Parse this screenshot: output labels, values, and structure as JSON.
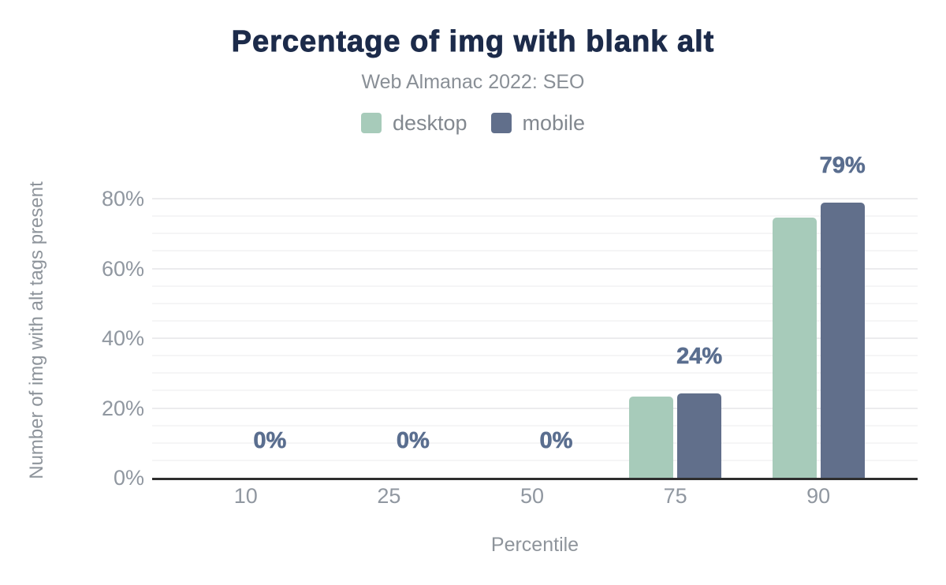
{
  "chart_data": {
    "type": "bar",
    "title": "Percentage of img with blank alt",
    "subtitle": "Web Almanac 2022: SEO",
    "xlabel": "Percentile",
    "ylabel": "Number of img with alt tags present",
    "categories": [
      "10",
      "25",
      "50",
      "75",
      "90"
    ],
    "series": [
      {
        "name": "desktop",
        "color": "#a7cbba",
        "values": [
          0,
          0,
          0,
          23.3,
          74.5
        ]
      },
      {
        "name": "mobile",
        "color": "#616f8b",
        "values": [
          0,
          0,
          0,
          24.2,
          79
        ]
      }
    ],
    "bar_labels": [
      "0%",
      "0%",
      "0%",
      "24%",
      "79%"
    ],
    "bar_labels_follow_series": "mobile",
    "ylim": [
      0,
      85
    ],
    "yticks": [
      0,
      20,
      40,
      60,
      80
    ],
    "ytick_labels": [
      "0%",
      "20%",
      "40%",
      "60%",
      "80%"
    ],
    "minor_grid_step": 5,
    "grid": true,
    "legend_position": "top",
    "colors": {
      "title": "#1c2b4a",
      "subtitle": "#898f96",
      "legend_text": "#82888f",
      "axis_text": "#9097a0",
      "axis_title_text": "#8e949b",
      "value_label": "#5a6e8f",
      "axis_line": "#2e2e2e",
      "major_grid": "#ececee",
      "minor_grid": "#f5f5f6",
      "background": "#ffffff"
    }
  }
}
